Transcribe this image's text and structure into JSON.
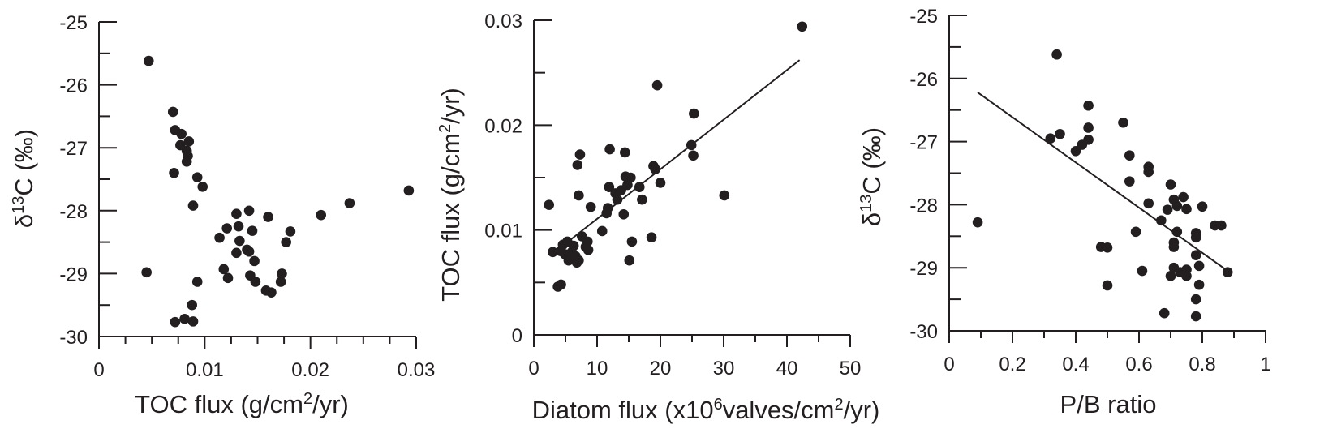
{
  "colors": {
    "ink": "#231f20",
    "background": "#ffffff"
  },
  "chart_data": [
    {
      "type": "scatter",
      "panel": "left",
      "title": "",
      "xlabel": {
        "pre": "TOC flux (g/cm",
        "sup": "2",
        "post": "/yr)"
      },
      "ylabel": {
        "pre": "δ",
        "sup": "13",
        "post": "C (‰)"
      },
      "xlim": [
        0,
        0.03
      ],
      "ylim": [
        -30,
        -25
      ],
      "x_ticks": [
        "0",
        "0.01",
        "0.02",
        "0.03"
      ],
      "y_ticks": [
        "-30",
        "-29",
        "-28",
        "-27",
        "-26",
        "-25"
      ],
      "trendline": null,
      "points": [
        [
          0.0047,
          -25.62
        ],
        [
          0.0045,
          -28.98
        ],
        [
          0.007,
          -26.43
        ],
        [
          0.0072,
          -26.72
        ],
        [
          0.0078,
          -26.78
        ],
        [
          0.0077,
          -26.96
        ],
        [
          0.0085,
          -26.9
        ],
        [
          0.0083,
          -27.05
        ],
        [
          0.0084,
          -27.13
        ],
        [
          0.0083,
          -27.22
        ],
        [
          0.0071,
          -27.4
        ],
        [
          0.0093,
          -27.47
        ],
        [
          0.0098,
          -27.62
        ],
        [
          0.0089,
          -27.92
        ],
        [
          0.0072,
          -29.77
        ],
        [
          0.0081,
          -29.72
        ],
        [
          0.0089,
          -29.76
        ],
        [
          0.0088,
          -29.5
        ],
        [
          0.0093,
          -29.13
        ],
        [
          0.0114,
          -28.43
        ],
        [
          0.0121,
          -28.28
        ],
        [
          0.013,
          -28.05
        ],
        [
          0.0132,
          -28.25
        ],
        [
          0.0142,
          -28.0
        ],
        [
          0.0145,
          -28.32
        ],
        [
          0.0133,
          -28.48
        ],
        [
          0.014,
          -28.62
        ],
        [
          0.013,
          -28.67
        ],
        [
          0.0142,
          -28.65
        ],
        [
          0.0147,
          -28.8
        ],
        [
          0.0118,
          -28.93
        ],
        [
          0.0122,
          -29.07
        ],
        [
          0.0143,
          -29.03
        ],
        [
          0.0148,
          -29.13
        ],
        [
          0.0158,
          -29.27
        ],
        [
          0.0163,
          -29.3
        ],
        [
          0.016,
          -28.1
        ],
        [
          0.0173,
          -29.0
        ],
        [
          0.0172,
          -29.13
        ],
        [
          0.0177,
          -28.5
        ],
        [
          0.0181,
          -28.33
        ],
        [
          0.021,
          -28.07
        ],
        [
          0.0237,
          -27.88
        ],
        [
          0.0293,
          -27.68
        ]
      ]
    },
    {
      "type": "scatter",
      "panel": "middle",
      "title": "",
      "xlabel": {
        "pre": "Diatom flux (x10",
        "sup": "6",
        "post": "valves/cm",
        "sup2": "2",
        "post2": "/yr)"
      },
      "ylabel": {
        "pre": "TOC flux (g/cm",
        "sup": "2",
        "post": "/yr)"
      },
      "xlim": [
        0,
        50
      ],
      "ylim": [
        0,
        0.03
      ],
      "x_ticks": [
        "0",
        "10",
        "20",
        "30",
        "40",
        "50"
      ],
      "y_ticks": [
        "0",
        "0.01",
        "0.02",
        "0.03"
      ],
      "trendline": [
        [
          5.0,
          0.0087
        ],
        [
          42.0,
          0.0262
        ]
      ],
      "points": [
        [
          2.4,
          0.0124
        ],
        [
          3.0,
          0.0079
        ],
        [
          3.8,
          0.0046
        ],
        [
          4.3,
          0.0048
        ],
        [
          4.2,
          0.008
        ],
        [
          4.6,
          0.0086
        ],
        [
          4.9,
          0.0077
        ],
        [
          5.3,
          0.0089
        ],
        [
          5.5,
          0.0071
        ],
        [
          6.0,
          0.0079
        ],
        [
          6.3,
          0.0085
        ],
        [
          6.6,
          0.0075
        ],
        [
          6.8,
          0.0069
        ],
        [
          7.1,
          0.0071
        ],
        [
          7.1,
          0.0133
        ],
        [
          6.9,
          0.0162
        ],
        [
          7.3,
          0.0172
        ],
        [
          7.6,
          0.0094
        ],
        [
          8.2,
          0.0084
        ],
        [
          8.5,
          0.0089
        ],
        [
          8.6,
          0.0081
        ],
        [
          9.0,
          0.0122
        ],
        [
          10.8,
          0.0099
        ],
        [
          11.5,
          0.0116
        ],
        [
          11.7,
          0.0121
        ],
        [
          11.9,
          0.0141
        ],
        [
          12.0,
          0.0177
        ],
        [
          12.9,
          0.0135
        ],
        [
          13.2,
          0.0129
        ],
        [
          13.8,
          0.0138
        ],
        [
          14.2,
          0.0115
        ],
        [
          14.4,
          0.0174
        ],
        [
          14.5,
          0.0151
        ],
        [
          15.1,
          0.0071
        ],
        [
          15.5,
          0.0089
        ],
        [
          15.3,
          0.015
        ],
        [
          16.7,
          0.0141
        ],
        [
          17.1,
          0.0129
        ],
        [
          18.6,
          0.0093
        ],
        [
          18.9,
          0.0161
        ],
        [
          19.2,
          0.0158
        ],
        [
          19.5,
          0.0238
        ],
        [
          20.0,
          0.0145
        ],
        [
          24.9,
          0.0181
        ],
        [
          25.3,
          0.0211
        ],
        [
          25.2,
          0.0171
        ],
        [
          30.1,
          0.0133
        ],
        [
          42.4,
          0.0294
        ],
        [
          14.8,
          0.0143
        ]
      ]
    },
    {
      "type": "scatter",
      "panel": "right",
      "title": "",
      "xlabel": {
        "pre": "P/B ratio",
        "sup": "",
        "post": ""
      },
      "ylabel": {
        "pre": "δ",
        "sup": "13",
        "post": "C (‰)"
      },
      "xlim": [
        0,
        1
      ],
      "ylim": [
        -30,
        -25
      ],
      "x_ticks": [
        "0",
        "0.2",
        "0.4",
        "0.6",
        "0.8",
        "1"
      ],
      "y_ticks": [
        "-30",
        "-29",
        "-28",
        "-27",
        "-26",
        "-25"
      ],
      "trendline": [
        [
          0.09,
          -26.22
        ],
        [
          0.88,
          -29.05
        ]
      ],
      "points": [
        [
          0.09,
          -28.28
        ],
        [
          0.34,
          -25.62
        ],
        [
          0.32,
          -26.95
        ],
        [
          0.35,
          -26.88
        ],
        [
          0.4,
          -27.15
        ],
        [
          0.42,
          -27.05
        ],
        [
          0.44,
          -26.97
        ],
        [
          0.44,
          -26.78
        ],
        [
          0.44,
          -26.43
        ],
        [
          0.48,
          -28.67
        ],
        [
          0.5,
          -28.68
        ],
        [
          0.5,
          -29.28
        ],
        [
          0.55,
          -26.7
        ],
        [
          0.57,
          -27.22
        ],
        [
          0.57,
          -27.63
        ],
        [
          0.59,
          -28.43
        ],
        [
          0.61,
          -29.05
        ],
        [
          0.63,
          -27.4
        ],
        [
          0.63,
          -27.48
        ],
        [
          0.63,
          -27.98
        ],
        [
          0.67,
          -28.25
        ],
        [
          0.68,
          -29.72
        ],
        [
          0.69,
          -28.08
        ],
        [
          0.7,
          -29.13
        ],
        [
          0.7,
          -27.68
        ],
        [
          0.71,
          -27.92
        ],
        [
          0.72,
          -28.02
        ],
        [
          0.72,
          -28.43
        ],
        [
          0.71,
          -28.6
        ],
        [
          0.71,
          -28.67
        ],
        [
          0.71,
          -29.0
        ],
        [
          0.73,
          -29.07
        ],
        [
          0.74,
          -27.88
        ],
        [
          0.75,
          -28.07
        ],
        [
          0.75,
          -29.03
        ],
        [
          0.75,
          -29.13
        ],
        [
          0.78,
          -29.5
        ],
        [
          0.78,
          -29.77
        ],
        [
          0.78,
          -28.45
        ],
        [
          0.78,
          -28.52
        ],
        [
          0.78,
          -28.8
        ],
        [
          0.79,
          -28.97
        ],
        [
          0.79,
          -29.27
        ],
        [
          0.8,
          -28.03
        ],
        [
          0.84,
          -28.33
        ],
        [
          0.86,
          -28.33
        ],
        [
          0.88,
          -29.07
        ]
      ]
    }
  ]
}
